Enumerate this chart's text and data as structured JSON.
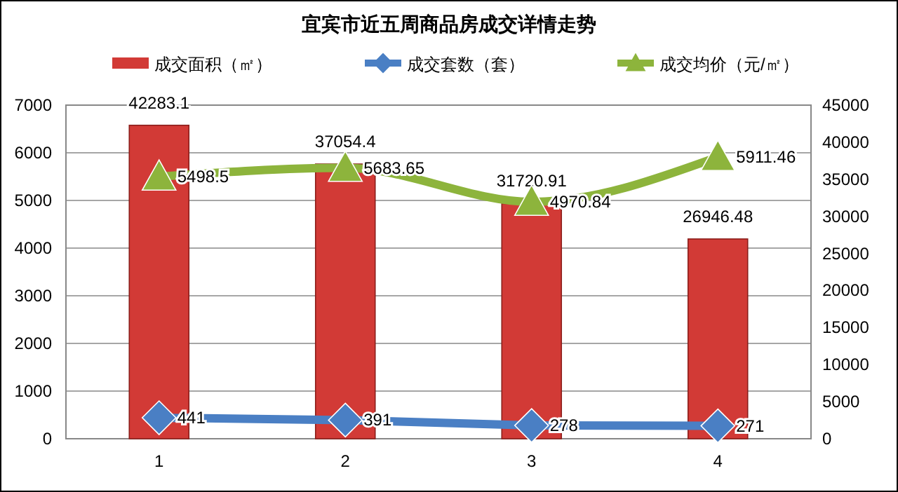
{
  "chart_data": {
    "type": "bar",
    "title": "宜宾市近五周商品房成交详情走势",
    "categories": [
      "1",
      "2",
      "3",
      "4"
    ],
    "series": [
      {
        "name": "成交面积（㎡）",
        "axis": "y2",
        "color": "#d23a36",
        "values": [
          42283.1,
          37054.4,
          31720.91,
          26946.48
        ]
      },
      {
        "name": "成交套数（套）",
        "type": "line",
        "axis": "y",
        "color": "#4a7fc4",
        "marker": "diamond",
        "values": [
          441,
          391,
          278,
          271
        ]
      },
      {
        "name": "成交均价（元/㎡）",
        "type": "line",
        "axis": "y",
        "color": "#8db43c",
        "marker": "triangle",
        "values": [
          5498.5,
          5683.65,
          4970.84,
          5911.46
        ]
      }
    ],
    "ylim": [
      0,
      7000
    ],
    "yticks": [
      0,
      1000,
      2000,
      3000,
      4000,
      5000,
      6000,
      7000
    ],
    "y2lim": [
      0,
      45000
    ],
    "y2ticks": [
      0,
      5000,
      10000,
      15000,
      20000,
      25000,
      30000,
      35000,
      40000,
      45000
    ],
    "grid": "y",
    "legend": "top",
    "data_labels": true
  }
}
